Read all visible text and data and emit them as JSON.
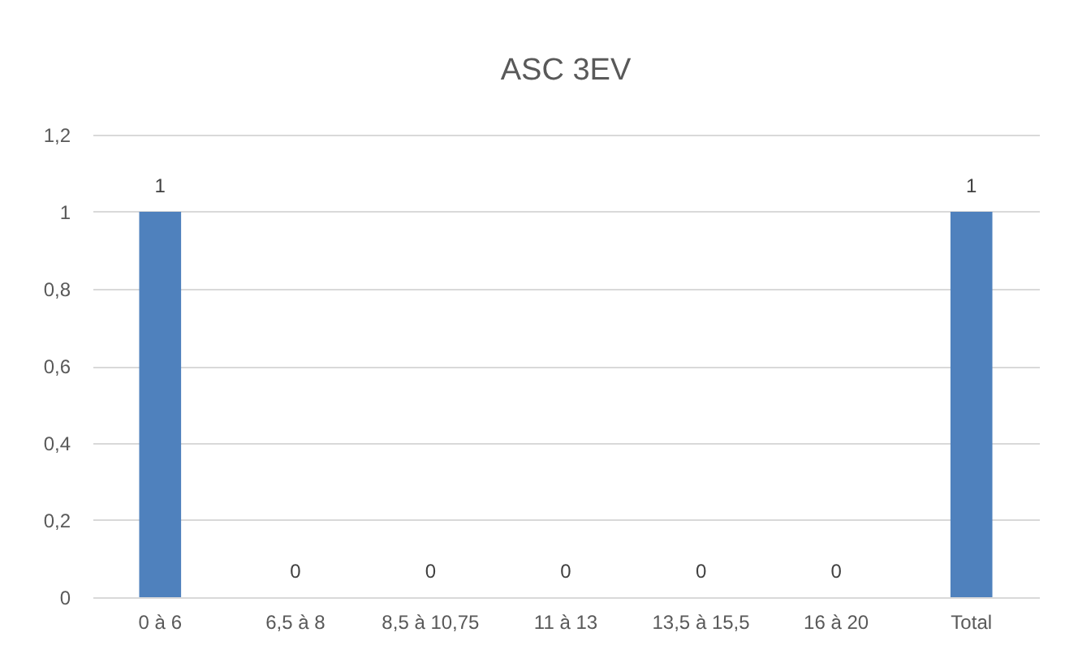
{
  "chart_data": {
    "type": "bar",
    "title": "ASC 3EV",
    "categories": [
      "0 à 6",
      "6,5 à 8",
      "8,5 à 10,75",
      "11 à 13",
      "13,5 à 15,5",
      "16 à 20",
      "Total"
    ],
    "values": [
      1,
      0,
      0,
      0,
      0,
      0,
      1
    ],
    "color": "#4f81bd",
    "ylim": [
      0,
      1.2
    ],
    "yticks": [
      0,
      {
        "value": 0.2,
        "label": "0,2"
      },
      {
        "value": 0.4,
        "label": "0,4"
      },
      {
        "value": 0.6,
        "label": "0,6"
      },
      {
        "value": 0.8,
        "label": "0,8"
      },
      1,
      {
        "value": 1.2,
        "label": "1,2"
      }
    ],
    "grid": "y",
    "data_labels": true
  }
}
